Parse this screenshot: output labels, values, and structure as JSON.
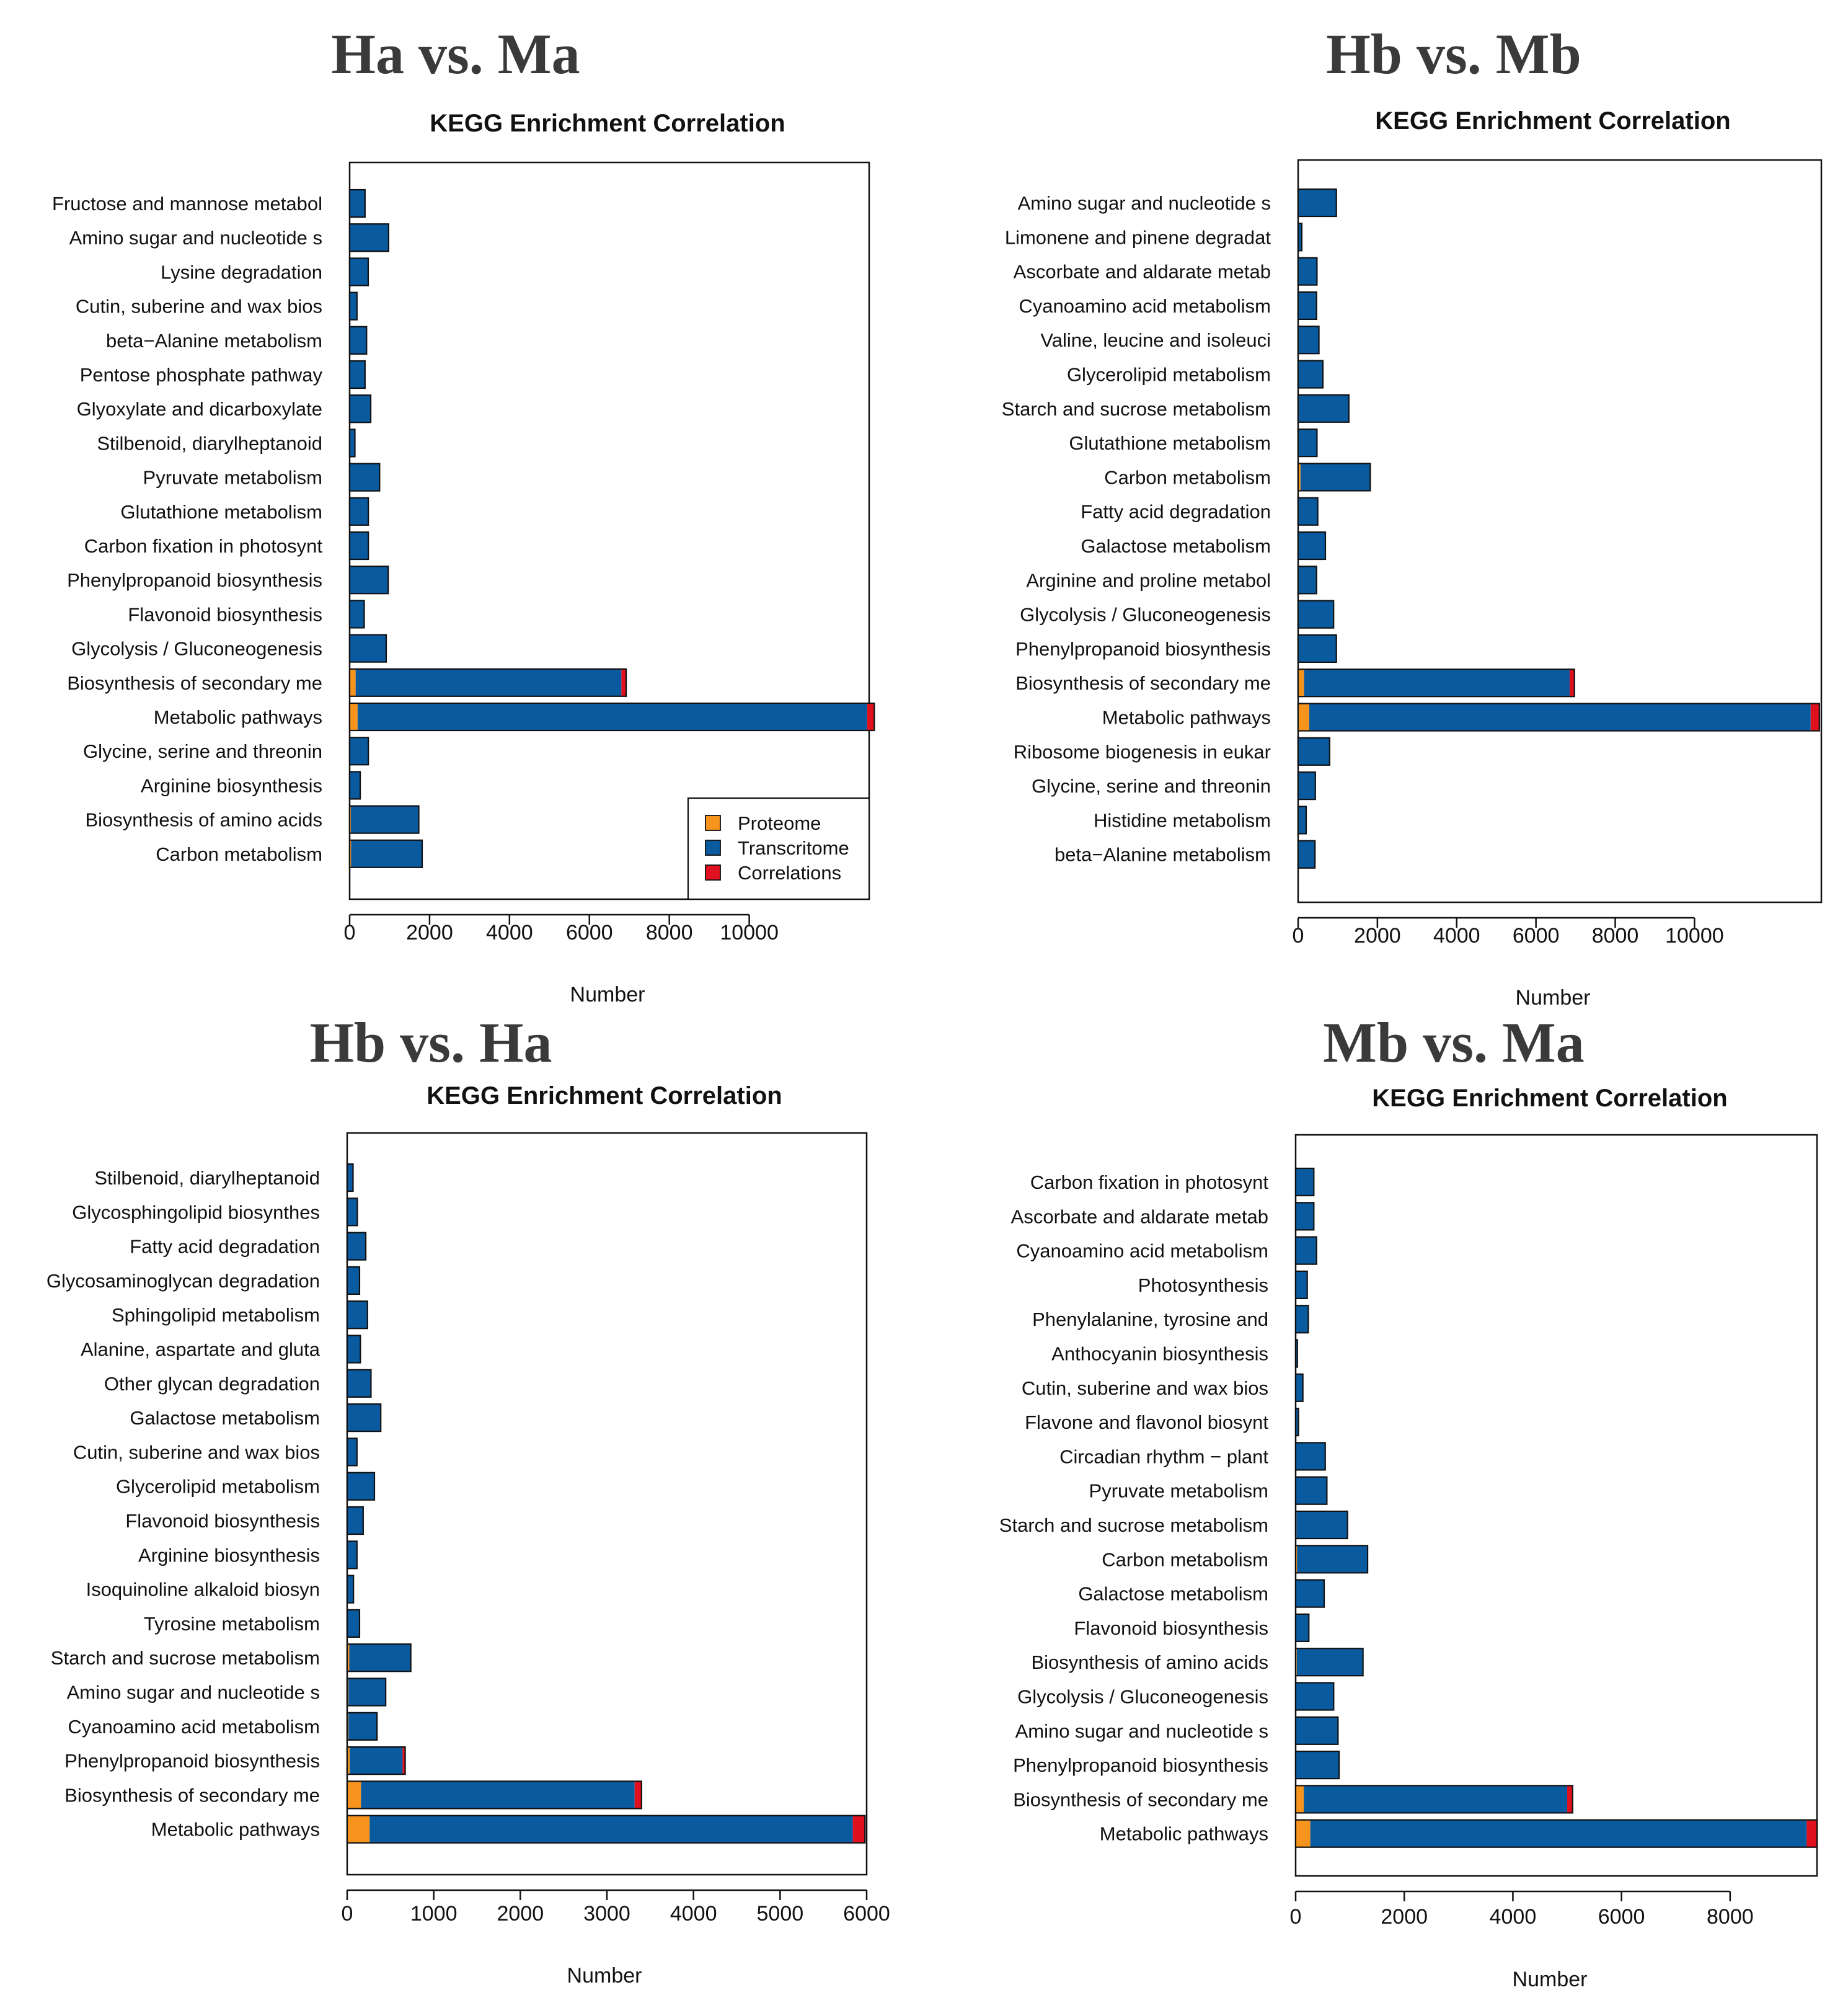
{
  "colors": {
    "proteome": "#F7941D",
    "transcritome": "#0A5AA0",
    "correlations": "#E0101E",
    "bar_stroke": "#111111"
  },
  "chart_data": [
    {
      "type": "bar",
      "orientation": "horizontal",
      "stacked": true,
      "comparison": "Ha vs. Ma",
      "title": "KEGG Enrichment Correlation",
      "xlabel": "Number",
      "xticks": [
        0,
        2000,
        4000,
        6000,
        8000,
        10000
      ],
      "xlim": [
        0,
        13000
      ],
      "legend": {
        "position": "bottom-right",
        "items": [
          "Proteome",
          "Transcritome",
          "Correlations"
        ]
      },
      "categories": [
        "Fructose and mannose metabol",
        "Amino sugar and nucleotide s",
        "Lysine degradation",
        "Cutin, suberine and wax bios",
        "beta−Alanine metabolism",
        "Pentose phosphate pathway",
        "Glyoxylate and dicarboxylate",
        "Stilbenoid, diarylheptanoid",
        "Pyruvate metabolism",
        "Glutathione metabolism",
        "Carbon fixation in photosynt",
        "Phenylpropanoid biosynthesis",
        "Flavonoid biosynthesis",
        "Glycolysis / Gluconeogenesis",
        "Biosynthesis of secondary me",
        "Metabolic pathways",
        "Glycine, serine and threonin",
        "Arginine biosynthesis",
        "Biosynthesis of amino acids",
        "Carbon metabolism"
      ],
      "series": [
        {
          "name": "Proteome",
          "values": [
            5,
            15,
            5,
            3,
            4,
            5,
            8,
            2,
            10,
            8,
            8,
            15,
            5,
            15,
            150,
            200,
            8,
            5,
            30,
            35
          ]
        },
        {
          "name": "Transcritome",
          "values": [
            380,
            960,
            460,
            180,
            420,
            380,
            520,
            130,
            740,
            460,
            460,
            950,
            360,
            900,
            6650,
            12750,
            460,
            260,
            1700,
            1780
          ]
        },
        {
          "name": "Correlations",
          "values": [
            0,
            0,
            0,
            0,
            0,
            0,
            0,
            0,
            0,
            0,
            0,
            0,
            0,
            0,
            120,
            180,
            0,
            0,
            0,
            0
          ]
        }
      ]
    },
    {
      "type": "bar",
      "orientation": "horizontal",
      "stacked": true,
      "comparison": "Hb vs. Mb",
      "title": "KEGG Enrichment Correlation",
      "xlabel": "Number",
      "xticks": [
        0,
        2000,
        4000,
        6000,
        8000,
        10000
      ],
      "xlim": [
        0,
        13200
      ],
      "categories": [
        "Amino sugar and nucleotide s",
        "Limonene and pinene degradat",
        "Ascorbate and aldarate metab",
        "Cyanoamino acid metabolism",
        "Valine, leucine and isoleuci",
        "Glycerolipid metabolism",
        "Starch and sucrose metabolism",
        "Glutathione metabolism",
        "Carbon metabolism",
        "Fatty acid degradation",
        "Galactose metabolism",
        "Arginine and proline metabol",
        "Glycolysis / Gluconeogenesis",
        "Phenylpropanoid biosynthesis",
        "Biosynthesis of secondary me",
        "Metabolic pathways",
        "Ribosome biogenesis in eukar",
        "Glycine, serine and threonin",
        "Histidine metabolism",
        "beta−Alanine metabolism"
      ],
      "series": [
        {
          "name": "Proteome",
          "values": [
            15,
            3,
            5,
            5,
            5,
            5,
            20,
            5,
            60,
            5,
            8,
            5,
            15,
            15,
            150,
            280,
            5,
            5,
            3,
            5
          ]
        },
        {
          "name": "Transcritome",
          "values": [
            950,
            90,
            470,
            460,
            520,
            620,
            1260,
            470,
            1760,
            490,
            680,
            460,
            880,
            950,
            6700,
            12650,
            790,
            430,
            200,
            420
          ]
        },
        {
          "name": "Correlations",
          "values": [
            0,
            0,
            0,
            0,
            0,
            0,
            0,
            0,
            0,
            0,
            0,
            0,
            0,
            0,
            120,
            220,
            0,
            0,
            0,
            0
          ]
        }
      ]
    },
    {
      "type": "bar",
      "orientation": "horizontal",
      "stacked": true,
      "comparison": "Hb vs. Ha",
      "title": "KEGG Enrichment Correlation",
      "xlabel": "Number",
      "xticks": [
        0,
        1000,
        2000,
        3000,
        4000,
        5000,
        6000
      ],
      "xlim": [
        0,
        6000
      ],
      "categories": [
        "Stilbenoid, diarylheptanoid",
        "Glycosphingolipid biosynthes",
        "Fatty acid degradation",
        "Glycosaminoglycan degradation",
        "Sphingolipid metabolism",
        "Alanine, aspartate and gluta",
        "Other glycan degradation",
        "Galactose metabolism",
        "Cutin, suberine and wax bios",
        "Glycerolipid metabolism",
        "Flavonoid biosynthesis",
        "Arginine biosynthesis",
        "Isoquinoline alkaloid biosyn",
        "Tyrosine metabolism",
        "Starch and sucrose metabolism",
        "Amino sugar and nucleotide s",
        "Cyanoamino acid metabolism",
        "Phenylpropanoid biosynthesis",
        "Biosynthesis of secondary me",
        "Metabolic pathways"
      ],
      "series": [
        {
          "name": "Proteome",
          "values": [
            3,
            3,
            5,
            3,
            5,
            3,
            5,
            8,
            3,
            5,
            5,
            3,
            3,
            3,
            25,
            15,
            15,
            30,
            160,
            260
          ]
        },
        {
          "name": "Transcritome",
          "values": [
            65,
            115,
            210,
            140,
            230,
            150,
            270,
            380,
            110,
            310,
            180,
            110,
            70,
            140,
            710,
            430,
            330,
            610,
            3160,
            5580
          ]
        },
        {
          "name": "Correlations",
          "values": [
            0,
            0,
            0,
            0,
            0,
            0,
            0,
            0,
            0,
            0,
            0,
            0,
            0,
            0,
            0,
            0,
            0,
            30,
            80,
            140
          ]
        }
      ]
    },
    {
      "type": "bar",
      "orientation": "horizontal",
      "stacked": true,
      "comparison": "Mb vs. Ma",
      "title": "KEGG Enrichment Correlation",
      "xlabel": "Number",
      "xticks": [
        0,
        2000,
        4000,
        6000,
        8000
      ],
      "xlim": [
        0,
        9600
      ],
      "categories": [
        "Carbon fixation in photosynt",
        "Ascorbate and aldarate metab",
        "Cyanoamino acid metabolism",
        "Photosynthesis",
        "Phenylalanine, tyrosine and",
        "Anthocyanin biosynthesis",
        "Cutin, suberine and wax bios",
        "Flavone and flavonol biosynt",
        "Circadian rhythm − plant",
        "Pyruvate metabolism",
        "Starch and sucrose metabolism",
        "Carbon metabolism",
        "Galactose metabolism",
        "Flavonoid biosynthesis",
        "Biosynthesis of amino acids",
        "Glycolysis / Gluconeogenesis",
        "Amino sugar and nucleotide s",
        "Phenylpropanoid biosynthesis",
        "Biosynthesis of secondary me",
        "Metabolic pathways"
      ],
      "series": [
        {
          "name": "Proteome",
          "values": [
            5,
            5,
            5,
            3,
            3,
            2,
            3,
            2,
            5,
            5,
            15,
            25,
            5,
            3,
            20,
            10,
            10,
            10,
            150,
            270
          ]
        },
        {
          "name": "Transcritome",
          "values": [
            330,
            330,
            380,
            210,
            230,
            30,
            130,
            50,
            540,
            570,
            940,
            1300,
            520,
            240,
            1220,
            690,
            770,
            790,
            4850,
            9140
          ]
        },
        {
          "name": "Correlations",
          "values": [
            0,
            0,
            0,
            0,
            0,
            0,
            0,
            0,
            0,
            0,
            0,
            0,
            0,
            0,
            0,
            0,
            0,
            0,
            100,
            190
          ]
        }
      ]
    }
  ]
}
